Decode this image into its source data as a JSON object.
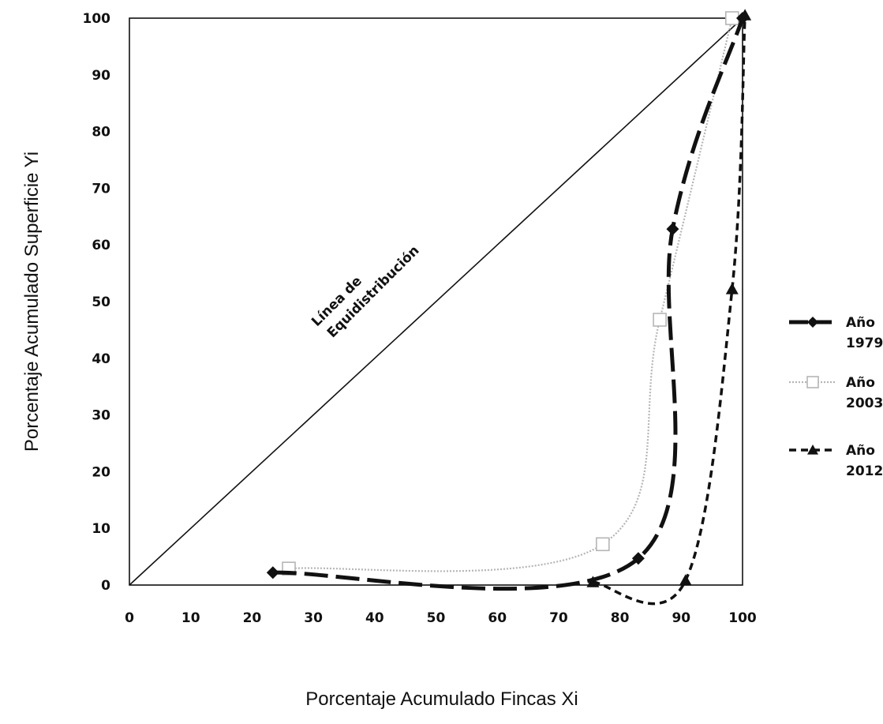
{
  "chart_data": {
    "type": "line",
    "title": "",
    "xlabel": "Porcentaje Acumulado Fincas  Xi",
    "ylabel": "Porcentaje Acumulado Superficie Yi",
    "xlim": [
      0,
      100
    ],
    "ylim": [
      0,
      100
    ],
    "xticks": [
      "0",
      "10",
      "20",
      "30",
      "40",
      "50",
      "60",
      "70",
      "80",
      "90",
      "100"
    ],
    "yticks": [
      "0",
      "10",
      "20",
      "30",
      "40",
      "50",
      "60",
      "70",
      "80",
      "90",
      "100"
    ],
    "grid": false,
    "legend_position": "right",
    "equidistribution": {
      "label_line1": "Línea de",
      "label_line2": "Equidistribución",
      "points": [
        [
          0,
          0
        ],
        [
          100,
          100
        ]
      ]
    },
    "series": [
      {
        "name": "Año 1979",
        "legend_line1": "Año",
        "legend_line2": "1979",
        "marker": "diamond",
        "line_style": "long-dash",
        "color": "#111111",
        "points": [
          [
            23.4,
            2.2
          ],
          [
            83,
            4.7
          ],
          [
            88.6,
            62.8
          ],
          [
            100,
            100
          ]
        ]
      },
      {
        "name": "Año 2003",
        "legend_line1": "Año",
        "legend_line2": "2003",
        "marker": "square-open",
        "line_style": "dotted",
        "color": "#b5b5b5",
        "points": [
          [
            26,
            2.9
          ],
          [
            77.2,
            7.2
          ],
          [
            86.5,
            46.8
          ],
          [
            98.3,
            100
          ]
        ]
      },
      {
        "name": "Año 2012",
        "legend_line1": "Año",
        "legend_line2": "2012",
        "marker": "triangle",
        "line_style": "short-dash",
        "color": "#111111",
        "points": [
          [
            75.6,
            0.5
          ],
          [
            90.7,
            0.8
          ],
          [
            98.3,
            52.2
          ],
          [
            100.4,
            100.5
          ]
        ]
      }
    ]
  }
}
